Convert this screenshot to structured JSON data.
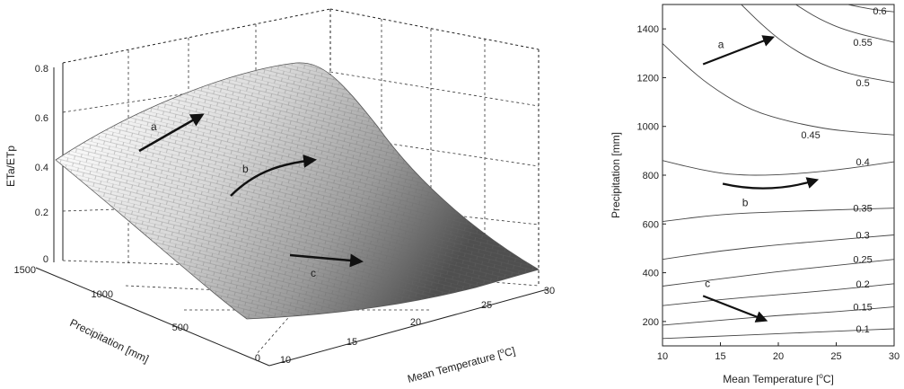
{
  "chart_data": [
    {
      "type": "surface",
      "zlabel": "ETa/ETp",
      "ylabel": "Precipitation [mm]",
      "xlabel_prefix": "Mean Temperature [",
      "xlabel_sup": "o",
      "xlabel_suffix": "C]",
      "z_ticks": [
        "0",
        "0.2",
        "0.4",
        "0.6",
        "0.8"
      ],
      "p_ticks": [
        "1500",
        "1000",
        "500",
        "0"
      ],
      "t_ticks": [
        "10",
        "15",
        "20",
        "25",
        "30"
      ],
      "xlim": [
        10,
        30
      ],
      "ylim": [
        0,
        1500
      ],
      "zlim": [
        0,
        0.8
      ],
      "surface_corners": [
        {
          "temperature": 10,
          "precipitation": 1500,
          "eta_etp": 0.43
        },
        {
          "temperature": 30,
          "precipitation": 1500,
          "eta_etp": 0.71
        },
        {
          "temperature": 30,
          "precipitation": 0,
          "eta_etp": 0.03
        },
        {
          "temperature": 10,
          "precipitation": 0,
          "eta_etp": 0.02
        }
      ],
      "arrows": [
        {
          "label": "a"
        },
        {
          "label": "b"
        },
        {
          "label": "c"
        }
      ],
      "colormap": "gray",
      "grid": true
    },
    {
      "type": "contour",
      "xlabel_prefix": "Mean Temperature [",
      "xlabel_sup": "o",
      "xlabel_suffix": "C]",
      "ylabel": "Precipitation [mm]",
      "xlim": [
        10,
        30
      ],
      "ylim": [
        100,
        1500
      ],
      "x_ticks": [
        "10",
        "15",
        "20",
        "25",
        "30"
      ],
      "y_ticks": [
        "200",
        "400",
        "600",
        "800",
        "1000",
        "1200",
        "1400"
      ],
      "contours": [
        {
          "level": "0.1",
          "points": [
            [
              10,
              130
            ],
            [
              15,
              140
            ],
            [
              20,
              150
            ],
            [
              25,
              160
            ],
            [
              30,
              170
            ]
          ]
        },
        {
          "level": "0.15",
          "points": [
            [
              10,
              185
            ],
            [
              15,
              205
            ],
            [
              20,
              225
            ],
            [
              25,
              240
            ],
            [
              30,
              260
            ]
          ]
        },
        {
          "level": "0.2",
          "points": [
            [
              10,
              265
            ],
            [
              15,
              290
            ],
            [
              20,
              310
            ],
            [
              25,
              330
            ],
            [
              30,
              355
            ]
          ]
        },
        {
          "level": "0.25",
          "points": [
            [
              10,
              345
            ],
            [
              15,
              375
            ],
            [
              20,
              405
            ],
            [
              25,
              430
            ],
            [
              30,
              455
            ]
          ]
        },
        {
          "level": "0.3",
          "points": [
            [
              10,
              455
            ],
            [
              15,
              490
            ],
            [
              20,
              515
            ],
            [
              25,
              535
            ],
            [
              30,
              555
            ]
          ]
        },
        {
          "level": "0.35",
          "points": [
            [
              10,
              610
            ],
            [
              15,
              640
            ],
            [
              20,
              650
            ],
            [
              25,
              658
            ],
            [
              30,
              665
            ]
          ]
        },
        {
          "level": "0.4",
          "points": [
            [
              10,
              860
            ],
            [
              13,
              825
            ],
            [
              16,
              800
            ],
            [
              20,
              800
            ],
            [
              25,
              820
            ],
            [
              30,
              855
            ]
          ]
        },
        {
          "level": "0.45",
          "points": [
            [
              10,
              1340
            ],
            [
              12,
              1250
            ],
            [
              14,
              1170
            ],
            [
              17,
              1080
            ],
            [
              20,
              1030
            ],
            [
              24,
              990
            ],
            [
              27,
              975
            ],
            [
              30,
              965
            ]
          ]
        },
        {
          "level": "0.5",
          "points": [
            [
              16.8,
              1500
            ],
            [
              18.5,
              1420
            ],
            [
              20.5,
              1340
            ],
            [
              23,
              1270
            ],
            [
              26,
              1215
            ],
            [
              30,
              1180
            ]
          ]
        },
        {
          "level": "0.55",
          "points": [
            [
              21.5,
              1500
            ],
            [
              23.5,
              1440
            ],
            [
              26,
              1390
            ],
            [
              30,
              1345
            ]
          ]
        },
        {
          "level": "0.6",
          "points": [
            [
              26,
              1500
            ],
            [
              28,
              1480
            ],
            [
              30,
              1470
            ]
          ]
        }
      ],
      "arrows": [
        {
          "label": "a",
          "from": [
            13.5,
            1255
          ],
          "to": [
            19.5,
            1365
          ]
        },
        {
          "label": "b",
          "from": [
            15.2,
            765
          ],
          "to": [
            23.3,
            780
          ]
        },
        {
          "label": "c",
          "from": [
            13.5,
            305
          ],
          "to": [
            18.9,
            205
          ]
        }
      ]
    }
  ]
}
